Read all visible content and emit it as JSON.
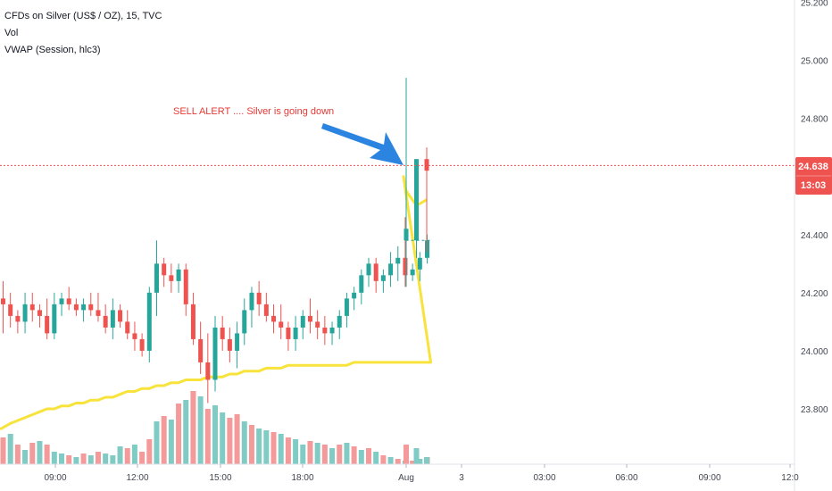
{
  "legend": {
    "symbol": "CFDs on Silver (US$ / OZ), 15, TVC",
    "volume": "Vol",
    "vwap": "VWAP (Session, hlc3)"
  },
  "annotation": {
    "text": "SELL ALERT .... Silver is going down"
  },
  "price_tag": {
    "price": "24.638",
    "countdown": "13:03"
  },
  "colors": {
    "up": "#26a69a",
    "down": "#ef5350",
    "up_volume": "#80cbc4",
    "down_volume": "#f49a9a",
    "vwap": "#f7e33b",
    "arrow": "#2a84e0",
    "alert": "#e53935",
    "price_line": "#ef5350"
  },
  "chart_data": {
    "type": "candlestick",
    "y_axis": {
      "ticks": [
        "25.200",
        "25.000",
        "24.800",
        "24.600",
        "24.400",
        "24.200",
        "24.000",
        "23.800"
      ],
      "range": [
        23.62,
        25.23
      ]
    },
    "x_axis": {
      "ticks": [
        "09:00",
        "12:00",
        "15:00",
        "18:00",
        "Aug",
        "3",
        "03:00",
        "06:00",
        "09:00",
        "12:0"
      ]
    },
    "last_price": 24.638,
    "candles": [
      [
        24.18,
        24.24,
        24.06,
        24.16
      ],
      [
        24.16,
        24.2,
        24.08,
        24.12
      ],
      [
        24.12,
        24.14,
        24.06,
        24.1
      ],
      [
        24.1,
        24.2,
        24.06,
        24.16
      ],
      [
        24.16,
        24.2,
        24.1,
        24.14
      ],
      [
        24.14,
        24.16,
        24.08,
        24.12
      ],
      [
        24.12,
        24.18,
        24.04,
        24.06
      ],
      [
        24.06,
        24.2,
        24.04,
        24.16
      ],
      [
        24.16,
        24.2,
        24.12,
        24.18
      ],
      [
        24.18,
        24.22,
        24.14,
        24.16
      ],
      [
        24.16,
        24.18,
        24.12,
        24.14
      ],
      [
        24.14,
        24.18,
        24.1,
        24.16
      ],
      [
        24.16,
        24.2,
        24.12,
        24.14
      ],
      [
        24.14,
        24.2,
        24.1,
        24.12
      ],
      [
        24.12,
        24.16,
        24.06,
        24.08
      ],
      [
        24.08,
        24.18,
        24.04,
        24.14
      ],
      [
        24.14,
        24.16,
        24.08,
        24.1
      ],
      [
        24.1,
        24.14,
        24.04,
        24.06
      ],
      [
        24.06,
        24.1,
        24.0,
        24.04
      ],
      [
        24.04,
        24.06,
        23.98,
        24.0
      ],
      [
        24.0,
        24.22,
        23.96,
        24.2
      ],
      [
        24.2,
        24.38,
        24.12,
        24.3
      ],
      [
        24.3,
        24.32,
        24.22,
        24.26
      ],
      [
        24.26,
        24.3,
        24.2,
        24.24
      ],
      [
        24.24,
        24.3,
        24.2,
        24.28
      ],
      [
        24.28,
        24.3,
        24.12,
        24.16
      ],
      [
        24.16,
        24.2,
        24.02,
        24.04
      ],
      [
        24.04,
        24.1,
        23.92,
        23.96
      ],
      [
        23.96,
        24.06,
        23.82,
        23.9
      ],
      [
        23.9,
        24.12,
        23.86,
        24.08
      ],
      [
        24.08,
        24.12,
        24.0,
        24.04
      ],
      [
        24.04,
        24.08,
        23.96,
        24.0
      ],
      [
        24.0,
        24.1,
        23.94,
        24.06
      ],
      [
        24.06,
        24.18,
        24.02,
        24.14
      ],
      [
        24.14,
        24.22,
        24.08,
        24.2
      ],
      [
        24.2,
        24.24,
        24.12,
        24.16
      ],
      [
        24.16,
        24.2,
        24.1,
        24.12
      ],
      [
        24.12,
        24.16,
        24.06,
        24.1
      ],
      [
        24.1,
        24.16,
        24.04,
        24.08
      ],
      [
        24.08,
        24.1,
        24.0,
        24.04
      ],
      [
        24.04,
        24.12,
        24.0,
        24.08
      ],
      [
        24.08,
        24.14,
        24.04,
        24.12
      ],
      [
        24.12,
        24.18,
        24.06,
        24.1
      ],
      [
        24.1,
        24.14,
        24.04,
        24.08
      ],
      [
        24.08,
        24.12,
        24.02,
        24.06
      ],
      [
        24.06,
        24.1,
        24.02,
        24.08
      ],
      [
        24.08,
        24.14,
        24.04,
        24.12
      ],
      [
        24.12,
        24.2,
        24.08,
        24.18
      ],
      [
        24.18,
        24.22,
        24.14,
        24.2
      ],
      [
        24.2,
        24.28,
        24.16,
        24.26
      ],
      [
        24.26,
        24.32,
        24.22,
        24.3
      ],
      [
        24.3,
        24.32,
        24.2,
        24.24
      ],
      [
        24.24,
        24.28,
        24.2,
        24.26
      ],
      [
        24.26,
        24.34,
        24.22,
        24.3
      ],
      [
        24.3,
        24.36,
        24.24,
        24.32
      ],
      [
        24.32,
        24.46,
        24.22,
        24.26
      ],
      [
        24.26,
        24.3,
        24.24,
        24.28
      ],
      [
        24.28,
        24.34,
        24.24,
        24.32
      ],
      [
        24.32,
        24.4,
        24.3,
        24.38
      ],
      [
        24.38,
        24.94,
        24.22,
        24.42
      ],
      [
        24.38,
        24.66,
        24.32,
        24.66
      ],
      [
        24.66,
        24.7,
        24.34,
        24.62
      ]
    ],
    "volumes": [
      [
        30,
        0
      ],
      [
        34,
        1
      ],
      [
        22,
        0
      ],
      [
        16,
        1
      ],
      [
        24,
        0
      ],
      [
        26,
        1
      ],
      [
        22,
        0
      ],
      [
        14,
        1
      ],
      [
        12,
        1
      ],
      [
        10,
        0
      ],
      [
        8,
        1
      ],
      [
        12,
        0
      ],
      [
        10,
        1
      ],
      [
        14,
        0
      ],
      [
        12,
        1
      ],
      [
        10,
        1
      ],
      [
        20,
        1
      ],
      [
        18,
        0
      ],
      [
        22,
        1
      ],
      [
        14,
        0
      ],
      [
        28,
        0
      ],
      [
        48,
        1
      ],
      [
        54,
        0
      ],
      [
        50,
        1
      ],
      [
        68,
        0
      ],
      [
        72,
        1
      ],
      [
        82,
        0
      ],
      [
        76,
        1
      ],
      [
        62,
        0
      ],
      [
        66,
        1
      ],
      [
        58,
        1
      ],
      [
        52,
        0
      ],
      [
        56,
        0
      ],
      [
        48,
        1
      ],
      [
        44,
        0
      ],
      [
        40,
        1
      ],
      [
        38,
        1
      ],
      [
        36,
        0
      ],
      [
        34,
        1
      ],
      [
        30,
        0
      ],
      [
        28,
        1
      ],
      [
        22,
        1
      ],
      [
        26,
        0
      ],
      [
        24,
        1
      ],
      [
        22,
        0
      ],
      [
        18,
        1
      ],
      [
        22,
        0
      ],
      [
        24,
        1
      ],
      [
        20,
        0
      ],
      [
        16,
        1
      ],
      [
        18,
        0
      ],
      [
        14,
        1
      ],
      [
        10,
        0
      ],
      [
        8,
        1
      ],
      [
        6,
        0
      ],
      [
        4,
        1
      ],
      [
        4,
        0
      ],
      [
        6,
        1
      ],
      [
        8,
        0
      ],
      [
        22,
        0
      ],
      [
        18,
        1
      ],
      [
        8,
        1
      ]
    ],
    "vwap": [
      23.73,
      23.75,
      23.76,
      23.77,
      23.78,
      23.79,
      23.8,
      23.8,
      23.81,
      23.81,
      23.82,
      23.82,
      23.83,
      23.83,
      23.84,
      23.84,
      23.85,
      23.86,
      23.86,
      23.87,
      23.87,
      23.88,
      23.88,
      23.89,
      23.89,
      23.9,
      23.9,
      23.9,
      23.91,
      23.91,
      23.91,
      23.92,
      23.92,
      23.93,
      23.93,
      23.93,
      23.94,
      23.94,
      23.94,
      23.95,
      23.95,
      23.95,
      23.95,
      23.95,
      23.95,
      23.95,
      23.95,
      23.95,
      23.96,
      23.96,
      23.96,
      23.96,
      23.96,
      23.96,
      23.96,
      23.96,
      23.96,
      23.96,
      23.96,
      24.55,
      24.5,
      24.52
    ]
  }
}
